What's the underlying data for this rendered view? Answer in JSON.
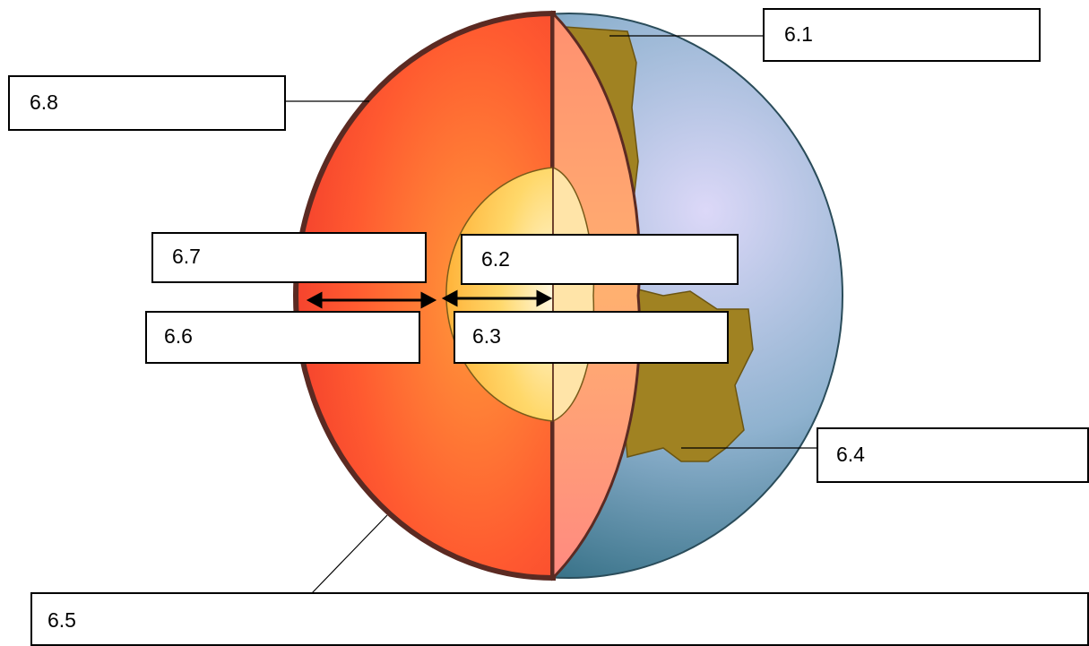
{
  "labels": [
    "6.1",
    "6.8",
    "6.7",
    "6.2",
    "6.6",
    "6.3",
    "6.4",
    "6.5"
  ]
}
